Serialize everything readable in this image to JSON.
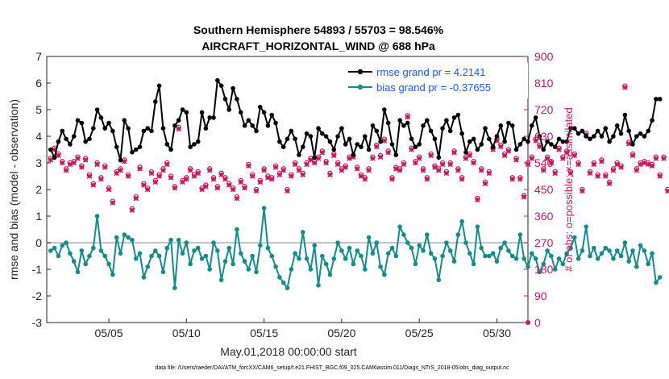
{
  "chart_data": {
    "type": "line",
    "title": "Southern Hemisphere 54893 / 55703 = 98.546%",
    "subtitle": "AIRCRAFT_HORIZONTAL_WIND @ 688 hPa",
    "xlabel": "May.01,2018 00:00:00 start",
    "ylabel": "rmse and bias (model - observation)",
    "ylabel_right": "# of obs: o=possible; ×=assimilated",
    "footer": "data file: /Users/raeder/DAI/ATM_forcXX/CAM6_setup/f.e21.FHIST_BGC.f09_025.CAM6assim.011/Diags_NTrS_2018-05/obs_diag_output.nc",
    "xlim": [
      1,
      32
    ],
    "ylim": [
      -3,
      7
    ],
    "ylim_right": [
      0,
      900
    ],
    "x_tick_values": [
      5,
      10,
      15,
      20,
      25,
      30
    ],
    "x_tick_labels": [
      "05/05",
      "05/10",
      "05/15",
      "05/20",
      "05/25",
      "05/30"
    ],
    "y_ticks": [
      "-3",
      "-2",
      "-1",
      "0",
      "1",
      "2",
      "3",
      "4",
      "5",
      "6",
      "7"
    ],
    "y_ticks_right": [
      "0",
      "90",
      "180",
      "270",
      "360",
      "450",
      "540",
      "630",
      "720",
      "810",
      "900"
    ],
    "grid": false,
    "legend": [
      "rmse grand pr = 4.2141",
      "bias grand pr = -0.37655"
    ],
    "colors": {
      "rmse": "#000000",
      "bias": "#138c8c",
      "obs": "#c8195a",
      "zero_line": "#b0b0b0"
    },
    "x_start": 1.25,
    "x_step": 0.25,
    "series": [
      {
        "name": "rmse",
        "values": [
          3.5,
          3.2,
          3.8,
          4.2,
          3.9,
          3.7,
          4.0,
          4.6,
          4.5,
          3.8,
          3.9,
          4.3,
          5.0,
          4.7,
          4.3,
          4.5,
          4.2,
          3.6,
          3.1,
          4.6,
          4.3,
          3.4,
          3.5,
          3.6,
          4.2,
          4.3,
          4.2,
          5.3,
          5.9,
          4.3,
          3.7,
          3.5,
          4.4,
          4.6,
          5.0,
          4.9,
          3.6,
          3.7,
          3.8,
          4.9,
          4.3,
          4.7,
          4.7,
          6.1,
          5.9,
          5.4,
          5.0,
          5.8,
          5.4,
          4.9,
          4.4,
          4.6,
          4.4,
          4.2,
          5.1,
          4.9,
          4.4,
          4.8,
          4.5,
          3.8,
          3.6,
          3.9,
          4.2,
          3.9,
          3.3,
          3.6,
          4.1,
          4.0,
          3.2,
          4.3,
          4.1,
          4.0,
          3.8,
          3.5,
          4.0,
          4.3,
          3.7,
          3.9,
          3.3,
          3.7,
          3.6,
          4.0,
          3.5,
          4.4,
          4.2,
          3.8,
          5.0,
          4.5,
          3.7,
          3.3,
          4.6,
          4.4,
          4.5,
          3.9,
          3.6,
          3.7,
          4.4,
          4.6,
          4.2,
          3.9,
          3.2,
          4.3,
          4.6,
          4.2,
          4.7,
          4.8,
          4.1,
          3.4,
          3.8,
          3.9,
          3.5,
          3.7,
          4.3,
          3.9,
          3.6,
          4.0,
          4.4,
          3.8,
          4.5,
          4.4,
          3.5,
          3.7,
          3.9,
          3.8,
          4.4,
          4.7,
          4.0,
          3.5,
          3.8,
          3.7,
          3.6,
          3.9,
          3.8,
          3.8,
          4.3,
          4.3,
          4.1,
          4.2,
          4.0,
          3.9,
          4.0,
          4.2,
          4.0,
          4.3,
          3.8,
          4.0,
          4.4,
          4.1,
          4.8,
          4.2,
          3.7,
          4.0,
          4.1,
          4.0,
          4.2,
          4.6,
          5.4,
          5.4
        ]
      },
      {
        "name": "bias",
        "values": [
          -0.3,
          -0.2,
          -0.5,
          -0.1,
          0.0,
          -0.4,
          -0.7,
          -1.1,
          -0.3,
          -0.8,
          -0.5,
          -0.2,
          1.0,
          -0.3,
          -0.5,
          -0.8,
          -1.2,
          0.2,
          -0.4,
          0.3,
          0.2,
          0.1,
          -0.6,
          -0.4,
          -1.3,
          -0.9,
          -0.5,
          -0.3,
          -0.5,
          -1.1,
          -0.2,
          0.1,
          -1.7,
          0.1,
          -0.4,
          0.0,
          -0.8,
          -0.3,
          -0.2,
          -0.6,
          -0.5,
          -1.0,
          0.0,
          -0.3,
          -1.4,
          -0.7,
          -0.2,
          -0.8,
          0.5,
          -0.4,
          -0.7,
          -1.0,
          -0.5,
          -1.1,
          -0.1,
          1.3,
          -0.2,
          -0.5,
          -0.9,
          -1.3,
          -1.5,
          -1.7,
          -1.0,
          -0.4,
          -0.6,
          0.4,
          -0.6,
          -1.0,
          -0.1,
          -1.6,
          -0.5,
          -0.8,
          -1.2,
          -0.6,
          0.0,
          -0.3,
          -0.6,
          -0.2,
          -0.8,
          -0.3,
          -0.5,
          -1.0,
          0.2,
          -0.4,
          0.0,
          -0.9,
          -1.2,
          -0.4,
          -0.2,
          -0.5,
          0.6,
          0.3,
          0.0,
          -0.2,
          -0.8,
          -0.1,
          -0.3,
          0.3,
          -0.4,
          -0.6,
          -1.4,
          -0.5,
          0.0,
          -0.3,
          -0.7,
          0.3,
          0.8,
          0.0,
          -0.4,
          -0.8,
          0.6,
          -0.2,
          -0.5,
          -0.5,
          -0.4,
          -0.7,
          -0.2,
          0.0,
          -0.3,
          -0.5,
          -0.6,
          0.3,
          -0.6,
          -0.9,
          -0.4,
          -0.6,
          -1.1,
          -0.8,
          -0.3,
          -0.5,
          -1.0,
          -0.6,
          -0.8,
          -0.4,
          -0.2,
          0.2,
          -0.6,
          -0.3,
          0.6,
          -0.5,
          -0.2,
          -0.6,
          -0.4,
          -0.2,
          -0.3,
          -0.6,
          -0.3,
          -0.5,
          0.0,
          -0.7,
          -0.3,
          -0.9,
          -0.1,
          -0.3,
          -0.8,
          -0.4,
          -1.5,
          -1.3
        ]
      },
      {
        "name": "obs_possible",
        "values": [
          555,
          590,
          570,
          545,
          520,
          540,
          545,
          560,
          530,
          555,
          500,
          470,
          540,
          490,
          530,
          455,
          410,
          510,
          520,
          550,
          500,
          385,
          425,
          525,
          470,
          455,
          510,
          480,
          500,
          520,
          540,
          495,
          460,
          660,
          480,
          490,
          520,
          500,
          510,
          455,
          465,
          520,
          490,
          460,
          505,
          490,
          470,
          455,
          425,
          480,
          460,
          535,
          500,
          450,
          480,
          520,
          495,
          490,
          530,
          505,
          520,
          450,
          500,
          540,
          520,
          505,
          540,
          555,
          545,
          560,
          580,
          545,
          505,
          570,
          540,
          520,
          530,
          560,
          565,
          525,
          500,
          490,
          520,
          560,
          600,
          565,
          620,
          580,
          490,
          525,
          520,
          540,
          700,
          590,
          545,
          560,
          520,
          490,
          570,
          530,
          520,
          540,
          510,
          540,
          580,
          520,
          490,
          560,
          570,
          545,
          420,
          520,
          475,
          510,
          590,
          620,
          600,
          570,
          585,
          490,
          555,
          490,
          430,
          540,
          560,
          620,
          600,
          520,
          560,
          545,
          510,
          590,
          560,
          580,
          510,
          570,
          540,
          450,
          640,
          510,
          540,
          500,
          550,
          500,
          475,
          520,
          540,
          530,
          800,
          610,
          570,
          520,
          540,
          545,
          540,
          535,
          560,
          500,
          560,
          450
        ]
      },
      {
        "name": "obs_assimilated",
        "values": [
          550,
          585,
          565,
          540,
          515,
          535,
          540,
          555,
          525,
          550,
          495,
          465,
          535,
          485,
          525,
          450,
          405,
          505,
          515,
          545,
          495,
          380,
          420,
          520,
          465,
          450,
          505,
          475,
          495,
          515,
          535,
          490,
          455,
          655,
          475,
          485,
          515,
          495,
          505,
          450,
          460,
          515,
          485,
          455,
          500,
          485,
          465,
          450,
          420,
          475,
          455,
          530,
          495,
          445,
          475,
          515,
          490,
          485,
          525,
          500,
          515,
          445,
          495,
          535,
          515,
          500,
          535,
          550,
          540,
          555,
          575,
          540,
          500,
          565,
          535,
          515,
          525,
          555,
          560,
          520,
          495,
          485,
          515,
          555,
          595,
          560,
          615,
          575,
          485,
          520,
          515,
          535,
          695,
          585,
          540,
          555,
          515,
          485,
          565,
          525,
          515,
          535,
          505,
          535,
          575,
          515,
          485,
          555,
          565,
          540,
          415,
          515,
          470,
          505,
          585,
          615,
          595,
          565,
          580,
          485,
          550,
          485,
          425,
          535,
          555,
          615,
          595,
          515,
          555,
          540,
          505,
          585,
          555,
          575,
          505,
          565,
          535,
          445,
          635,
          505,
          535,
          495,
          545,
          495,
          470,
          515,
          535,
          525,
          795,
          605,
          565,
          515,
          535,
          540,
          535,
          530,
          555,
          495,
          555,
          445
        ]
      }
    ]
  }
}
